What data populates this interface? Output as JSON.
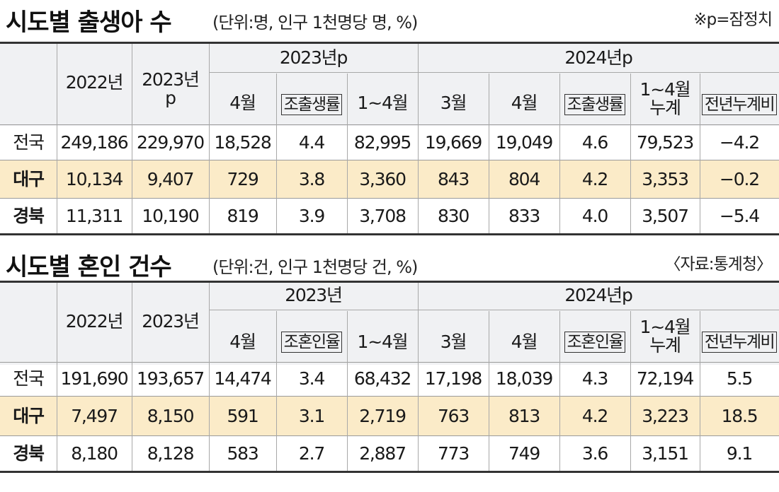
{
  "birth": {
    "title": "시도별 출생아 수",
    "unit": "(단위:명, 인구 1천명당 명, %)",
    "note": "※p=잠정치",
    "headers": {
      "y2022": "2022년",
      "y2023p_line1": "2023년",
      "y2023p_line2": "p",
      "group2023": "2023년p",
      "group2024": "2024년p",
      "apr": "4월",
      "rate": "조출생률",
      "janapr": "1~4월",
      "mar": "3월",
      "cum_line1": "1~4월",
      "cum_line2": "누계",
      "yoy": "전년누계비"
    },
    "rows": [
      {
        "region": "전국",
        "cells": [
          "249,186",
          "229,970",
          "18,528",
          "4.4",
          "82,995",
          "19,669",
          "19,049",
          "4.6",
          "79,523",
          "−4.2"
        ]
      },
      {
        "region": "대구",
        "cells": [
          "10,134",
          "9,407",
          "729",
          "3.8",
          "3,360",
          "843",
          "804",
          "4.2",
          "3,353",
          "−0.2"
        ]
      },
      {
        "region": "경북",
        "cells": [
          "11,311",
          "10,190",
          "819",
          "3.9",
          "3,708",
          "830",
          "833",
          "4.0",
          "3,507",
          "−5.4"
        ]
      }
    ]
  },
  "marriage": {
    "title": "시도별 혼인 건수",
    "unit": "(단위:건, 인구 1천명당 건, %)",
    "note": "〈자료:통계청〉",
    "headers": {
      "y2022": "2022년",
      "y2023": "2023년",
      "group2023": "2023년",
      "group2024": "2024년p",
      "apr": "4월",
      "rate": "조혼인율",
      "janapr": "1~4월",
      "mar": "3월",
      "cum_line1": "1~4월",
      "cum_line2": "누계",
      "yoy": "전년누계비"
    },
    "rows": [
      {
        "region": "전국",
        "cells": [
          "191,690",
          "193,657",
          "14,474",
          "3.4",
          "68,432",
          "17,198",
          "18,039",
          "4.3",
          "72,194",
          "5.5"
        ]
      },
      {
        "region": "대구",
        "cells": [
          "7,497",
          "8,150",
          "591",
          "3.1",
          "2,719",
          "763",
          "813",
          "4.2",
          "3,223",
          "18.5"
        ]
      },
      {
        "region": "경북",
        "cells": [
          "8,180",
          "8,128",
          "583",
          "2.7",
          "2,887",
          "773",
          "749",
          "3.6",
          "3,151",
          "9.1"
        ]
      }
    ]
  },
  "colors": {
    "header_band": "#f0f1f3",
    "highlight_row": "#fbebc8",
    "text": "#1a1a1a",
    "rule": "#333333"
  }
}
